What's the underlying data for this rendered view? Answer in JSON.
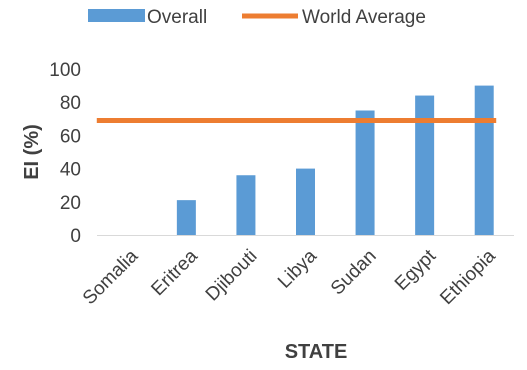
{
  "chart_data": {
    "type": "bar",
    "title": "",
    "xlabel": "STATE",
    "ylabel": "EI (%)",
    "categories": [
      "Somalia",
      "Eritrea",
      "Djibouti",
      "Libya",
      "Sudan",
      "Egypt",
      "Ethiopia"
    ],
    "series": [
      {
        "name": "Overall",
        "type": "bar",
        "values": [
          0,
          21,
          36,
          40,
          75,
          84,
          90
        ],
        "color": "#5B9BD5"
      },
      {
        "name": "World Average",
        "type": "line",
        "values": [
          69,
          69,
          69,
          69,
          69,
          69,
          69
        ],
        "color": "#ED7D31"
      }
    ],
    "ylim": [
      0,
      100
    ],
    "yticks": [
      0,
      20,
      40,
      60,
      80,
      100
    ],
    "grid": false,
    "legend_position": "top"
  }
}
